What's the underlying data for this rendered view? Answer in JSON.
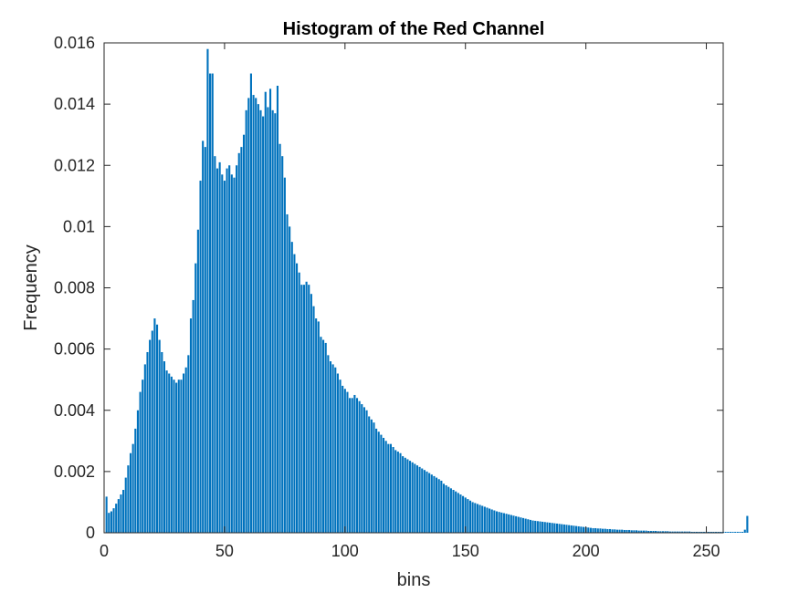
{
  "chart_data": {
    "type": "bar",
    "title": "Histogram of the Red Channel",
    "xlabel": "bins",
    "ylabel": "Frequency",
    "xlim": [
      0,
      257
    ],
    "ylim": [
      0,
      0.016
    ],
    "grid": false,
    "bar_color": "#0072BD",
    "x_ticks": [
      0,
      50,
      100,
      150,
      200,
      250
    ],
    "x_tick_labels": [
      "0",
      "50",
      "100",
      "150",
      "200",
      "250"
    ],
    "y_ticks": [
      0,
      0.002,
      0.004,
      0.006,
      0.008,
      0.01,
      0.012,
      0.014,
      0.016
    ],
    "y_tick_labels": [
      "0",
      "0.002",
      "0.004",
      "0.006",
      "0.008",
      "0.01",
      "0.012",
      "0.014",
      "0.016"
    ],
    "bins_start": 1,
    "values": [
      0.00118,
      0.00065,
      0.0007,
      0.0008,
      0.00095,
      0.0011,
      0.00125,
      0.0014,
      0.0018,
      0.0022,
      0.0026,
      0.0029,
      0.0034,
      0.004,
      0.0046,
      0.005,
      0.0055,
      0.0059,
      0.0063,
      0.0066,
      0.007,
      0.0068,
      0.0063,
      0.0059,
      0.0056,
      0.0053,
      0.0052,
      0.0051,
      0.005,
      0.0049,
      0.005,
      0.005,
      0.0052,
      0.0054,
      0.0058,
      0.007,
      0.0076,
      0.0088,
      0.0099,
      0.0115,
      0.0128,
      0.0126,
      0.0158,
      0.015,
      0.015,
      0.0123,
      0.0119,
      0.0121,
      0.0117,
      0.0115,
      0.0119,
      0.012,
      0.0117,
      0.0116,
      0.012,
      0.0124,
      0.0126,
      0.013,
      0.0138,
      0.0142,
      0.015,
      0.0143,
      0.0142,
      0.014,
      0.0138,
      0.0136,
      0.0144,
      0.0139,
      0.0145,
      0.0138,
      0.0137,
      0.0146,
      0.0127,
      0.0123,
      0.0116,
      0.0104,
      0.01,
      0.0095,
      0.0091,
      0.0088,
      0.0085,
      0.0081,
      0.0081,
      0.0082,
      0.0081,
      0.0078,
      0.0074,
      0.007,
      0.0069,
      0.0064,
      0.0063,
      0.0062,
      0.0058,
      0.0056,
      0.0055,
      0.0054,
      0.0052,
      0.005,
      0.0048,
      0.0047,
      0.0046,
      0.0044,
      0.0044,
      0.0045,
      0.0044,
      0.0043,
      0.0042,
      0.0041,
      0.004,
      0.0038,
      0.0037,
      0.0036,
      0.0034,
      0.0033,
      0.0032,
      0.0031,
      0.003,
      0.0029,
      0.0029,
      0.0028,
      0.0027,
      0.00265,
      0.0026,
      0.0025,
      0.00245,
      0.0024,
      0.00235,
      0.0023,
      0.00225,
      0.0022,
      0.00215,
      0.0021,
      0.00205,
      0.002,
      0.00195,
      0.0019,
      0.00185,
      0.0018,
      0.00175,
      0.0017,
      0.0016,
      0.00155,
      0.0015,
      0.00145,
      0.0014,
      0.00135,
      0.0013,
      0.00125,
      0.0012,
      0.00115,
      0.0011,
      0.00105,
      0.001,
      0.00097,
      0.00094,
      0.00091,
      0.00088,
      0.00085,
      0.00082,
      0.00079,
      0.00076,
      0.00073,
      0.0007,
      0.00068,
      0.00066,
      0.00064,
      0.00062,
      0.0006,
      0.00058,
      0.00056,
      0.00054,
      0.00052,
      0.0005,
      0.00048,
      0.00046,
      0.00044,
      0.00042,
      0.0004,
      0.00039,
      0.00038,
      0.00037,
      0.00036,
      0.00035,
      0.00034,
      0.00033,
      0.00032,
      0.00031,
      0.0003,
      0.00029,
      0.00028,
      0.00027,
      0.00026,
      0.00025,
      0.00024,
      0.00023,
      0.00022,
      0.00021,
      0.0002,
      0.00019,
      0.00018,
      0.00017,
      0.00016,
      0.00015,
      0.00015,
      0.00014,
      0.00014,
      0.00013,
      0.00013,
      0.00012,
      0.00012,
      0.00011,
      0.00011,
      0.0001,
      0.0001,
      0.0001,
      9e-05,
      9e-05,
      9e-05,
      8e-05,
      8e-05,
      8e-05,
      7e-05,
      7e-05,
      7e-05,
      7e-05,
      6e-05,
      6e-05,
      6e-05,
      6e-05,
      5e-05,
      5e-05,
      5e-05,
      5e-05,
      5e-05,
      4e-05,
      4e-05,
      4e-05,
      4e-05,
      4e-05,
      4e-05,
      4e-05,
      4e-05,
      4e-05,
      3e-05,
      3e-05,
      3e-05,
      3e-05,
      3e-05,
      3e-05,
      3e-05,
      3e-05,
      3e-05,
      3e-05,
      3e-05,
      3e-05,
      3e-05,
      3e-05,
      3e-05,
      3e-05,
      3e-05,
      3e-05,
      3e-05,
      3e-05,
      3e-05,
      3e-05,
      0.0001,
      0.00055
    ]
  }
}
